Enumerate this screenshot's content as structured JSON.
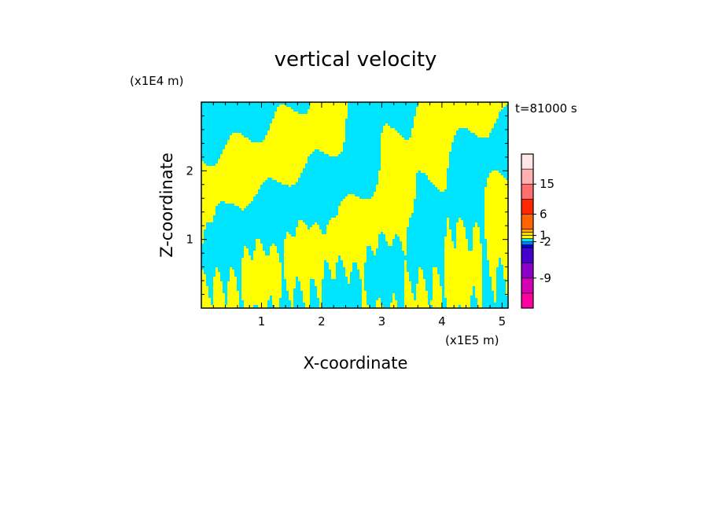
{
  "chart_data": {
    "type": "heatmap",
    "title": "vertical velocity",
    "xlabel": "X-coordinate",
    "ylabel": "Z-coordinate",
    "x_scale_label": "(x1E5 m)",
    "y_scale_label": "(x1E4 m)",
    "time_label": "t=81000 s",
    "xlim": [
      0,
      5.1
    ],
    "ylim": [
      0,
      3.0
    ],
    "x_ticks": [
      "1",
      "2",
      "3",
      "4",
      "5"
    ],
    "y_ticks": [
      "1",
      "2"
    ],
    "field_colors": {
      "positive": "#ffff00",
      "negative": "#00e5ff"
    },
    "colorbar": {
      "tick_labels": [
        "15",
        "6",
        "1",
        "-2",
        "-9"
      ],
      "colors": [
        "#ff00a0",
        "#d400b4",
        "#8a00c8",
        "#4400cc",
        "#0000cc",
        "#0078ff",
        "#00e5ff",
        "#ffff00",
        "#ffd700",
        "#ffa500",
        "#ff6400",
        "#ff2800",
        "#ff6e6e",
        "#ffb0b0",
        "#ffe6e6"
      ]
    }
  }
}
